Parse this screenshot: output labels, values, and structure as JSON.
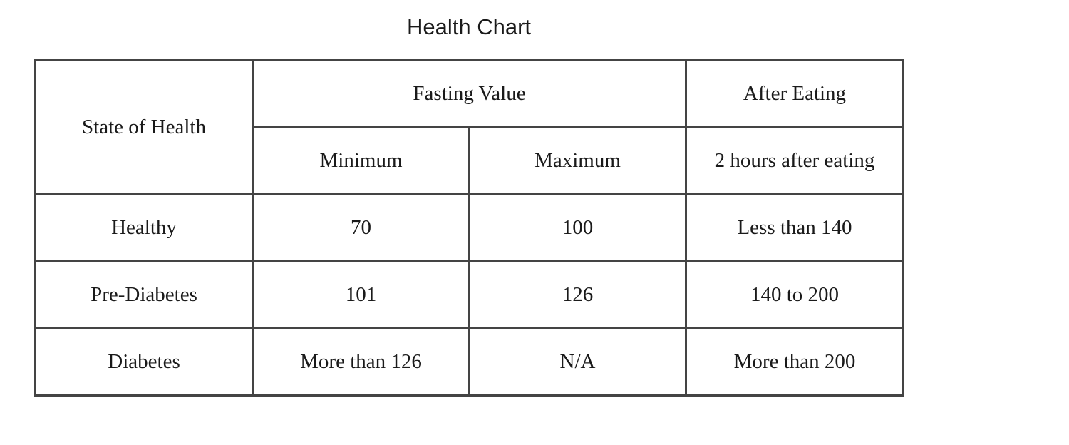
{
  "title": "Health Chart",
  "table": {
    "header": {
      "state_of_health": "State of Health",
      "fasting_value": "Fasting Value",
      "after_eating": "After Eating",
      "minimum": "Minimum",
      "maximum": "Maximum",
      "two_hours": "2 hours after eating"
    },
    "rows": [
      {
        "state": "Healthy",
        "minimum": "70",
        "maximum": "100",
        "after": "Less than 140"
      },
      {
        "state": "Pre-Diabetes",
        "minimum": "101",
        "maximum": "126",
        "after": "140 to 200"
      },
      {
        "state": "Diabetes",
        "minimum": "More than 126",
        "maximum": "N/A",
        "after": "More than 200"
      }
    ]
  }
}
